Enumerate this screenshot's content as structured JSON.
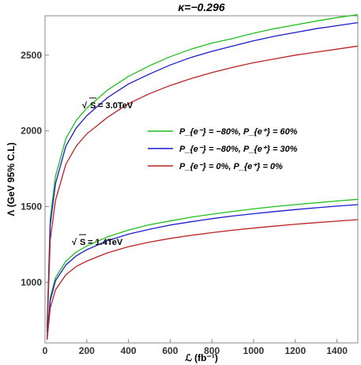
{
  "chart_data": {
    "type": "line",
    "title": "κ=−0.296",
    "xlabel": "ℒ (fb⁻¹)",
    "ylabel": "Λ (GeV 95% C.L)",
    "xlim": [
      0,
      1500
    ],
    "ylim": [
      600,
      2760
    ],
    "x_ticks": [
      0,
      200,
      400,
      600,
      800,
      1000,
      1200,
      1400
    ],
    "y_ticks": [
      1000,
      1500,
      2000,
      2500
    ],
    "grid": false,
    "legend_placement": "center-right",
    "colors": {
      "green": "#1fbf1f",
      "blue": "#1a1acc",
      "red": "#bb2222"
    },
    "series": [
      {
        "name": "P_{e⁻} = −80%, P_{e⁺} = 60%",
        "energy": "√S = 3.0TeV",
        "color": "green",
        "show_in_legend": true,
        "x": [
          10,
          25,
          50,
          100,
          150,
          200,
          300,
          400,
          500,
          600,
          700,
          800,
          900,
          1000,
          1100,
          1200,
          1300,
          1400,
          1500
        ],
        "values": [
          700,
          1420,
          1700,
          1950,
          2070,
          2150,
          2270,
          2360,
          2430,
          2490,
          2540,
          2580,
          2610,
          2645,
          2675,
          2700,
          2725,
          2748,
          2768
        ]
      },
      {
        "name": "P_{e⁻} = −80%, P_{e⁺} = 30%",
        "energy": "√S = 3.0TeV",
        "color": "blue",
        "show_in_legend": true,
        "x": [
          10,
          25,
          50,
          100,
          150,
          200,
          300,
          400,
          500,
          600,
          700,
          800,
          900,
          1000,
          1100,
          1200,
          1300,
          1400,
          1500
        ],
        "values": [
          690,
          1380,
          1650,
          1900,
          2020,
          2100,
          2220,
          2310,
          2375,
          2435,
          2485,
          2525,
          2560,
          2595,
          2625,
          2650,
          2675,
          2695,
          2715
        ]
      },
      {
        "name": "P_{e⁻} = 0%, P_{e⁺} = 0%",
        "energy": "√S = 3.0TeV",
        "color": "red",
        "show_in_legend": true,
        "x": [
          10,
          25,
          50,
          100,
          150,
          200,
          300,
          400,
          500,
          600,
          700,
          800,
          900,
          1000,
          1100,
          1200,
          1300,
          1400,
          1500
        ],
        "values": [
          670,
          1280,
          1540,
          1780,
          1900,
          1980,
          2090,
          2180,
          2245,
          2300,
          2345,
          2385,
          2420,
          2450,
          2475,
          2500,
          2520,
          2540,
          2560
        ]
      },
      {
        "name": "",
        "energy": "√S = 1.4TeV",
        "color": "green",
        "show_in_legend": false,
        "x": [
          10,
          25,
          50,
          100,
          150,
          200,
          300,
          400,
          500,
          600,
          700,
          800,
          900,
          1000,
          1100,
          1200,
          1300,
          1400,
          1500
        ],
        "values": [
          640,
          900,
          1030,
          1140,
          1200,
          1240,
          1300,
          1345,
          1380,
          1405,
          1430,
          1450,
          1468,
          1485,
          1500,
          1513,
          1525,
          1537,
          1548
        ]
      },
      {
        "name": "",
        "energy": "√S = 1.4TeV",
        "color": "blue",
        "show_in_legend": false,
        "x": [
          10,
          25,
          50,
          100,
          150,
          200,
          300,
          400,
          500,
          600,
          700,
          800,
          900,
          1000,
          1100,
          1200,
          1300,
          1400,
          1500
        ],
        "values": [
          630,
          880,
          1010,
          1115,
          1175,
          1215,
          1275,
          1318,
          1350,
          1378,
          1400,
          1420,
          1438,
          1453,
          1467,
          1480,
          1492,
          1503,
          1513
        ]
      },
      {
        "name": "",
        "energy": "√S = 1.4TeV",
        "color": "red",
        "show_in_legend": false,
        "x": [
          10,
          25,
          50,
          100,
          150,
          200,
          300,
          400,
          500,
          600,
          700,
          800,
          900,
          1000,
          1100,
          1200,
          1300,
          1400,
          1500
        ],
        "values": [
          620,
          830,
          950,
          1050,
          1105,
          1140,
          1195,
          1235,
          1265,
          1290,
          1310,
          1328,
          1344,
          1358,
          1371,
          1383,
          1394,
          1404,
          1414
        ]
      }
    ],
    "legend": [
      {
        "color": "green",
        "label": "P_{e⁻} = −80%,  P_{e⁺} = 60%"
      },
      {
        "color": "blue",
        "label": "P_{e⁻} = −80%,  P_{e⁺} = 30%"
      },
      {
        "color": "red",
        "label": "P_{e⁻} = 0%,  P_{e⁺} = 0%"
      }
    ],
    "annotations": [
      {
        "text_sqrt": "√",
        "text_S": "S",
        "text_rest": " = 3.0TeV"
      },
      {
        "text_sqrt": "√",
        "text_S": "S",
        "text_rest": " = 1.4TeV"
      }
    ]
  }
}
